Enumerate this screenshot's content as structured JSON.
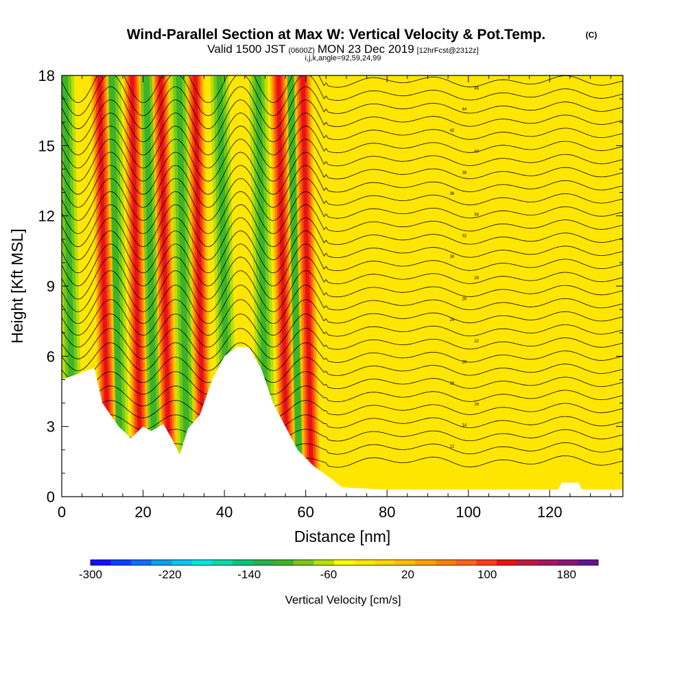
{
  "title": "Wind-Parallel Section at Max W: Vertical Velocity & Pot.Temp.",
  "copyright": "(C)",
  "subtitle": {
    "prefix": "Valid 1500 JST",
    "utc": "(0600Z)",
    "date": "MON 23 Dec 2019",
    "fcst": "[12hrFcst@2312z]"
  },
  "indices": "i,j,k,angle=92,59,24,99",
  "chart_data": {
    "type": "heatmap",
    "xlabel": "Distance [nm]",
    "ylabel": "Height [Kft MSL]",
    "xlim": [
      0,
      138
    ],
    "ylim": [
      0,
      18
    ],
    "x_ticks": [
      "0",
      "20",
      "40",
      "60",
      "80",
      "100",
      "120"
    ],
    "y_ticks": [
      "0",
      "3",
      "6",
      "9",
      "12",
      "15",
      "18"
    ],
    "colorbar": {
      "label": "Vertical Velocity [cm/s]",
      "tick_labels": [
        "-300",
        "-220",
        "-140",
        "-60",
        "20",
        "100",
        "180"
      ],
      "colors": [
        "#1010ff",
        "#0a40ff",
        "#0a6eff",
        "#0aa0f0",
        "#00c8f0",
        "#00e6e0",
        "#00dcaa",
        "#00c878",
        "#20b44a",
        "#3cb428",
        "#78c814",
        "#b4e10a",
        "#ffff00",
        "#ffe600",
        "#ffd200",
        "#ffbe00",
        "#ffa000",
        "#ff8200",
        "#ff6414",
        "#ff3c14",
        "#e61414",
        "#c8143c",
        "#aa145a",
        "#8c1478",
        "#64148c"
      ]
    },
    "terrain_profile": [
      [
        0,
        5
      ],
      [
        8,
        5.5
      ],
      [
        10,
        4
      ],
      [
        14,
        3
      ],
      [
        17,
        2.5
      ],
      [
        20,
        3
      ],
      [
        22,
        2.8
      ],
      [
        25,
        3.1
      ],
      [
        27,
        2.5
      ],
      [
        29,
        1.8
      ],
      [
        31,
        2.9
      ],
      [
        34,
        3.5
      ],
      [
        37,
        5
      ],
      [
        40,
        6
      ],
      [
        43,
        6.4
      ],
      [
        46,
        6.4
      ],
      [
        49,
        5.5
      ],
      [
        52,
        4
      ],
      [
        55,
        3
      ],
      [
        58,
        2
      ],
      [
        62,
        1.3
      ],
      [
        66,
        0.8
      ],
      [
        69,
        0.4
      ],
      [
        80,
        0.3
      ],
      [
        110,
        0.3
      ],
      [
        122,
        0.3
      ],
      [
        123,
        0.6
      ],
      [
        127,
        0.6
      ],
      [
        128,
        0.3
      ],
      [
        138,
        0.3
      ]
    ],
    "updraft_bands_nm": [
      11.5,
      19.5,
      26.5,
      35,
      55.5,
      61.5
    ],
    "downdraft_bands_nm": [
      3,
      14.5,
      23,
      31,
      41,
      50.5,
      58.5
    ],
    "theta_labels": [
      "12",
      "14",
      "16",
      "18",
      "20",
      "22",
      "24",
      "26",
      "28",
      "30",
      "32",
      "34",
      "36",
      "38",
      "40",
      "42",
      "44",
      "46",
      "48",
      "50"
    ]
  }
}
